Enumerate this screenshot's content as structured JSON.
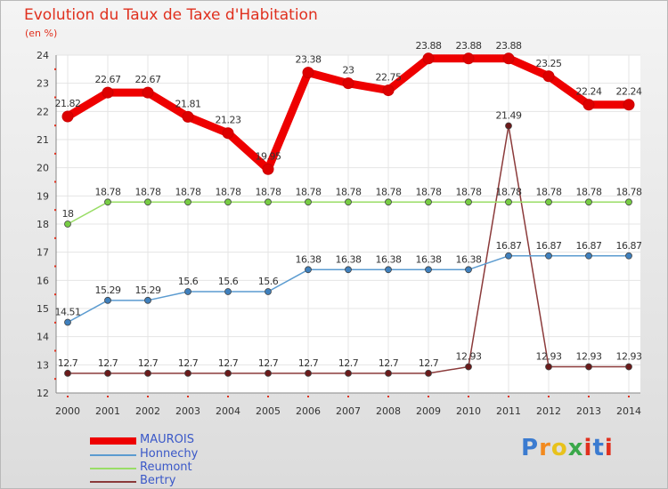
{
  "title": "Evolution du Taux de Taxe d'Habitation",
  "subtitle": "(en %)",
  "logo_text": "Proxiti",
  "chart_data": {
    "type": "line",
    "x": [
      "2000",
      "2001",
      "2002",
      "2003",
      "2004",
      "2005",
      "2006",
      "2007",
      "2008",
      "2009",
      "2010",
      "2011",
      "2012",
      "2013",
      "2014"
    ],
    "ylim": [
      12,
      24
    ],
    "yticks": [
      12,
      13,
      14,
      15,
      16,
      17,
      18,
      19,
      20,
      21,
      22,
      23,
      24
    ],
    "grid": true,
    "legend_position": "bottom-left",
    "series": [
      {
        "name": "MAUROIS",
        "color": "#ee0000",
        "marker": "#dd0000",
        "values": [
          21.82,
          22.67,
          22.67,
          21.81,
          21.23,
          19.95,
          23.38,
          23,
          22.75,
          23.88,
          23.88,
          23.88,
          23.25,
          22.24,
          22.24
        ],
        "labels": [
          "21.82",
          "22.67",
          "22.67",
          "21.81",
          "21.23",
          "19.95",
          "23.38",
          "23",
          "22.75",
          "23.88",
          "23.88",
          "23.88",
          "23.25",
          "22.24",
          "22.24"
        ]
      },
      {
        "name": "Honnechy",
        "color": "#5b9bd0",
        "marker": "#3f80bd",
        "values": [
          14.51,
          15.29,
          15.29,
          15.6,
          15.6,
          15.6,
          16.38,
          16.38,
          16.38,
          16.38,
          16.38,
          16.87,
          16.87,
          16.87,
          16.87
        ],
        "labels": [
          "14.51",
          "15.29",
          "15.29",
          "15.6",
          "15.6",
          "15.6",
          "16.38",
          "16.38",
          "16.38",
          "16.38",
          "16.38",
          "16.87",
          "16.87",
          "16.87",
          "16.87"
        ]
      },
      {
        "name": "Reumont",
        "color": "#99dd66",
        "marker": "#77cc44",
        "values": [
          18,
          18.78,
          18.78,
          18.78,
          18.78,
          18.78,
          18.78,
          18.78,
          18.78,
          18.78,
          18.78,
          18.78,
          18.78,
          18.78,
          18.78
        ],
        "labels": [
          "18",
          "18.78",
          "18.78",
          "18.78",
          "18.78",
          "18.78",
          "18.78",
          "18.78",
          "18.78",
          "18.78",
          "18.78",
          "18.78",
          "18.78",
          "18.78",
          "18.78"
        ]
      },
      {
        "name": "Bertry",
        "color": "#8b3a3a",
        "marker": "#6b1a1a",
        "values": [
          12.7,
          12.7,
          12.7,
          12.7,
          12.7,
          12.7,
          12.7,
          12.7,
          12.7,
          12.7,
          12.93,
          21.49,
          12.93,
          12.93,
          12.93
        ],
        "labels": [
          "12.7",
          "12.7",
          "12.7",
          "12.7",
          "12.7",
          "12.7",
          "12.7",
          "12.7",
          "12.7",
          "12.7",
          "12.93",
          "21.49",
          "12.93",
          "12.93",
          "12.93"
        ]
      }
    ]
  }
}
